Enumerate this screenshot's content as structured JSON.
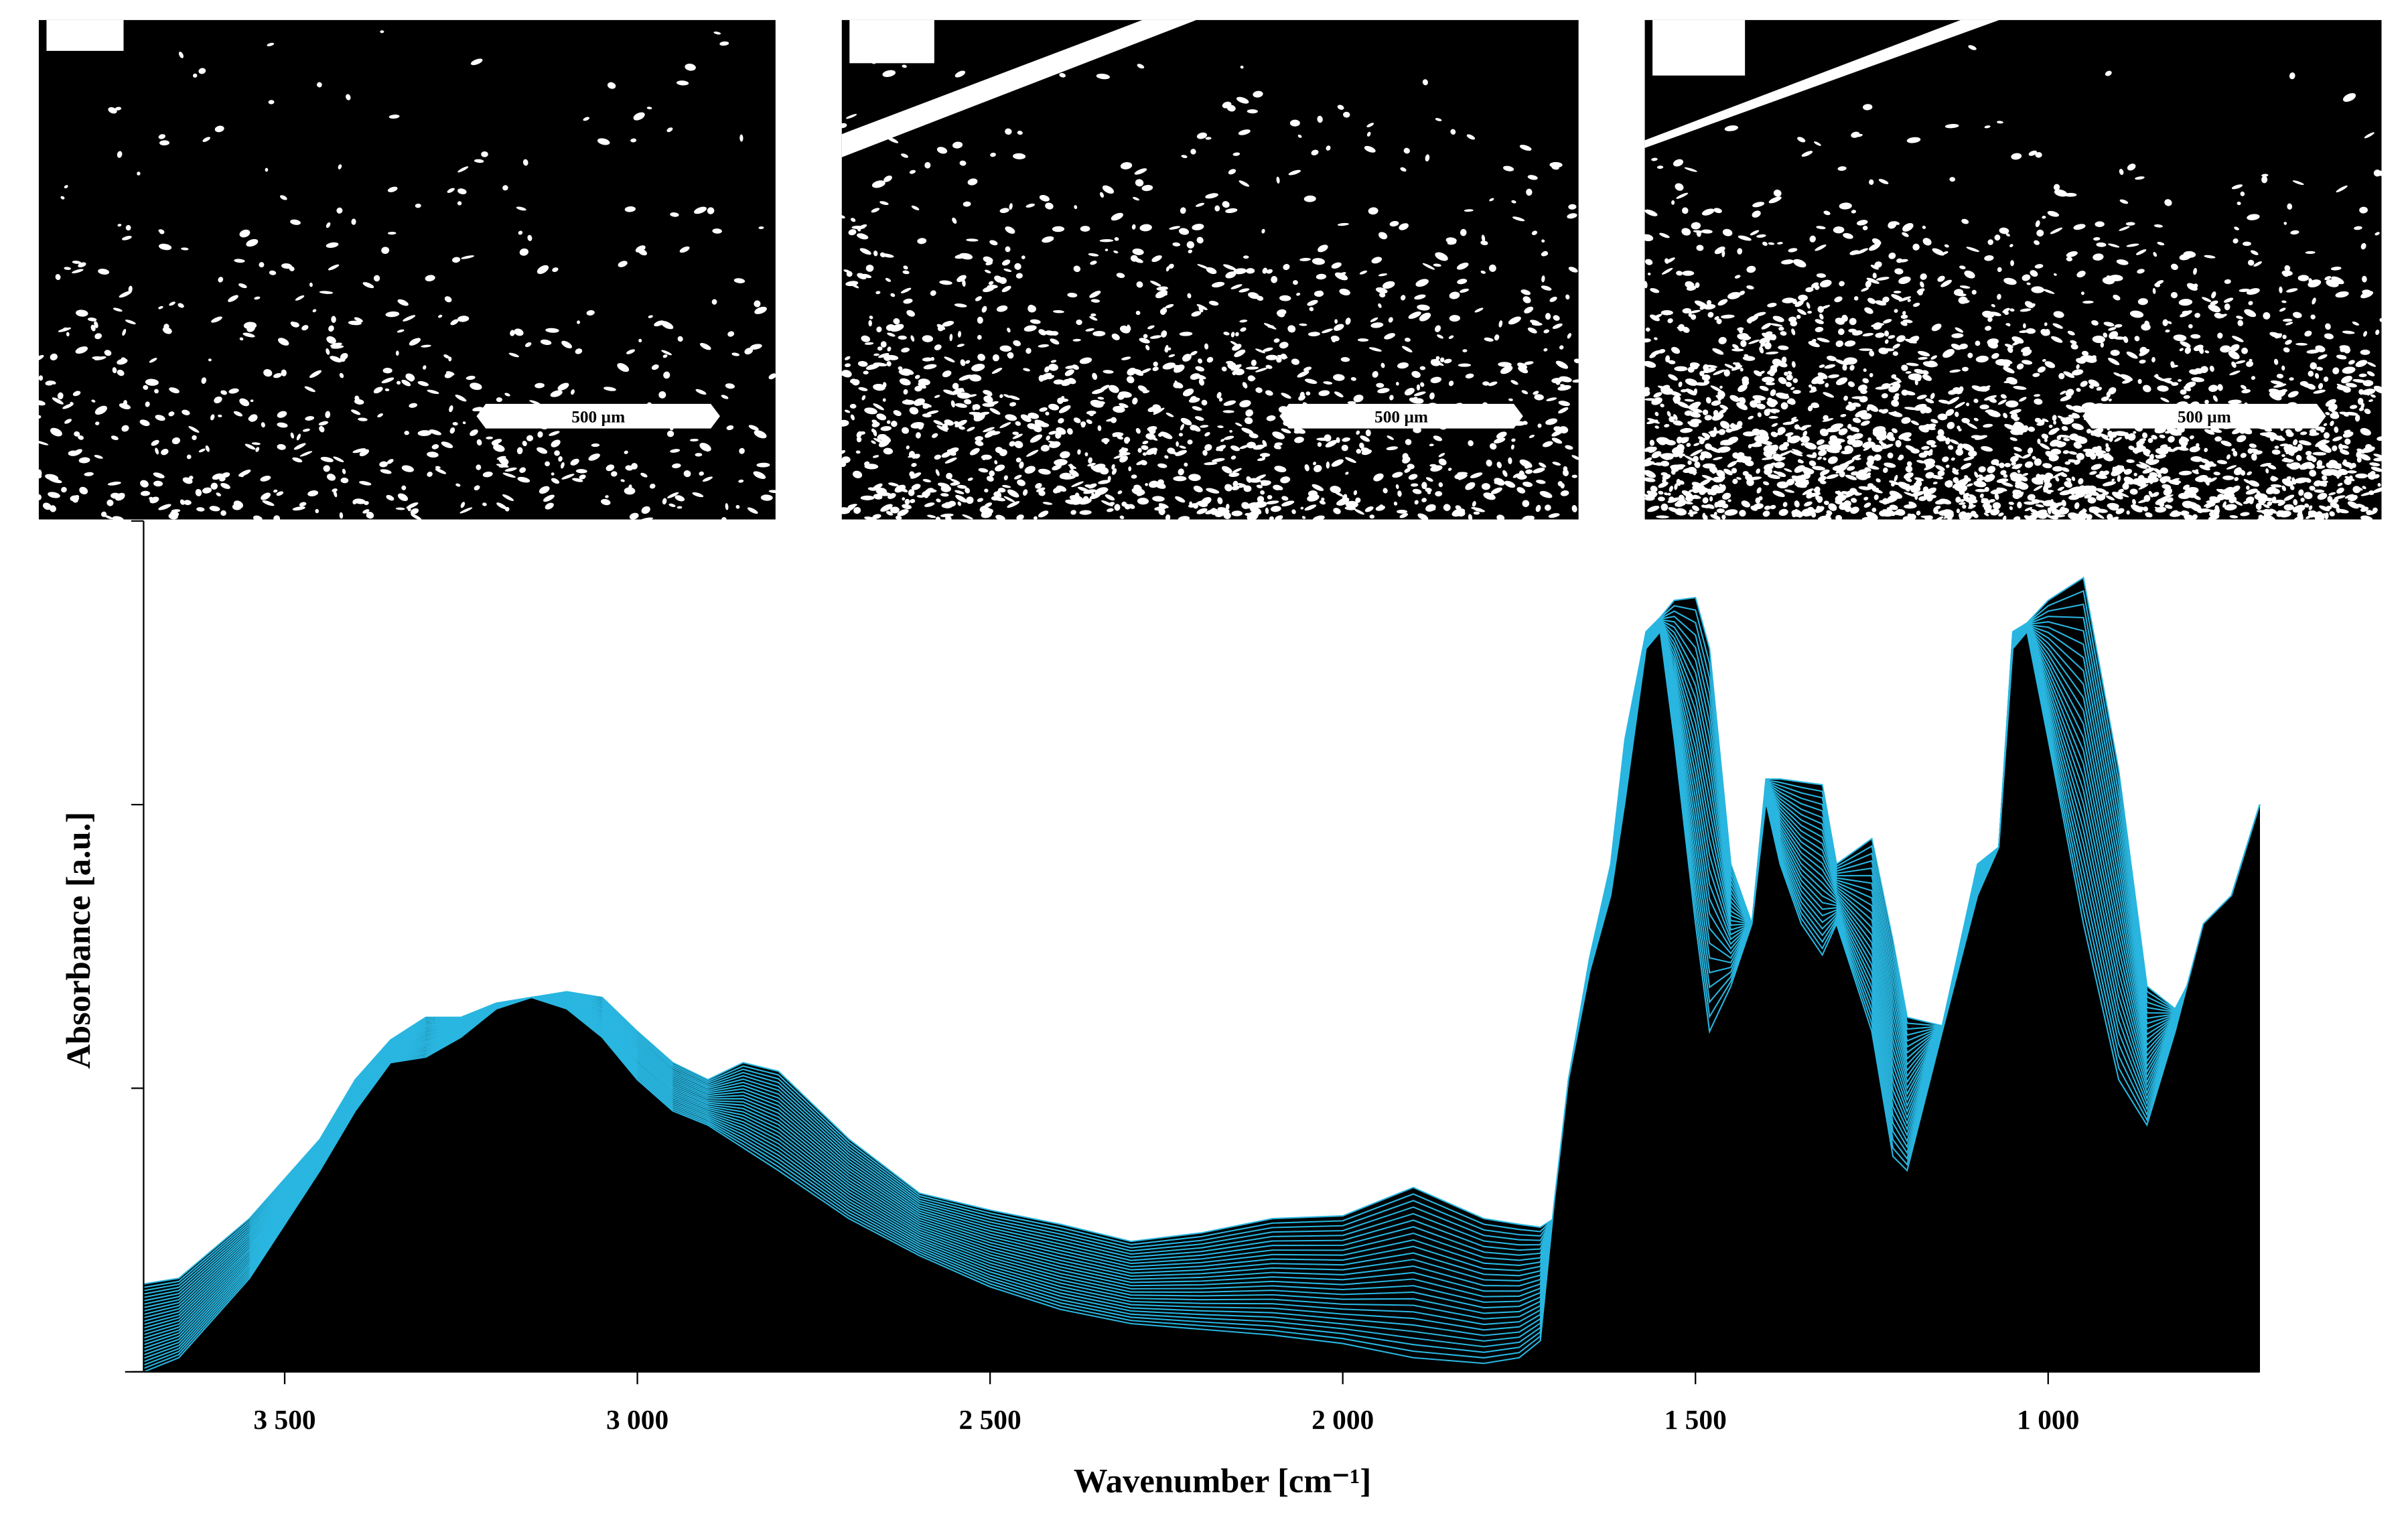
{
  "images": [
    {
      "scale_bar": "500 µm"
    },
    {
      "scale_bar": "500 µm"
    },
    {
      "scale_bar": "500 µm"
    }
  ],
  "chart_data": {
    "type": "waterfall",
    "xlabel": "Wavenumber [cm⁻¹]",
    "ylabel": "Absorbance [a.u.]",
    "xlim": [
      3700,
      700
    ],
    "ylim": [
      0,
      3
    ],
    "xticks": [
      {
        "value": 3500,
        "label": "3 500"
      },
      {
        "value": 3000,
        "label": "3 000"
      },
      {
        "value": 2500,
        "label": "2 500"
      },
      {
        "value": 2000,
        "label": "2 000"
      },
      {
        "value": 1500,
        "label": "1 500"
      },
      {
        "value": 1000,
        "label": "1 000"
      }
    ],
    "yticks": [
      0,
      1,
      2,
      3
    ],
    "x": [
      3700,
      3650,
      3550,
      3450,
      3400,
      3350,
      3300,
      3250,
      3200,
      3150,
      3100,
      3050,
      3000,
      2950,
      2900,
      2850,
      2800,
      2700,
      2600,
      2500,
      2400,
      2300,
      2200,
      2100,
      2000,
      1900,
      1800,
      1750,
      1720,
      1700,
      1680,
      1650,
      1620,
      1600,
      1570,
      1550,
      1530,
      1500,
      1480,
      1450,
      1420,
      1400,
      1380,
      1350,
      1320,
      1300,
      1250,
      1220,
      1200,
      1150,
      1100,
      1070,
      1050,
      1030,
      1000,
      950,
      900,
      860,
      820,
      780,
      740,
      700
    ],
    "series": [
      {
        "color": "#000000",
        "values": [
          0.0,
          0.05,
          0.33,
          0.71,
          0.92,
          1.09,
          1.11,
          1.18,
          1.28,
          1.32,
          1.28,
          1.18,
          1.03,
          0.92,
          0.87,
          0.79,
          0.71,
          0.54,
          0.41,
          0.3,
          0.22,
          0.17,
          0.15,
          0.13,
          0.1,
          0.05,
          0.03,
          0.05,
          0.11,
          0.6,
          1.03,
          1.41,
          1.68,
          2.01,
          2.55,
          2.61,
          2.23,
          1.58,
          1.2,
          1.36,
          1.58,
          2.01,
          1.79,
          1.58,
          1.47,
          1.58,
          1.2,
          0.76,
          0.71,
          1.2,
          1.68,
          1.85,
          2.55,
          2.61,
          2.23,
          1.58,
          1.03,
          0.87,
          1.2,
          1.58,
          1.68,
          2.0
        ]
      },
      {
        "color": "#29b6e0",
        "values": [
          0.31,
          0.33,
          0.54,
          0.82,
          1.03,
          1.17,
          1.25,
          1.25,
          1.3,
          1.32,
          1.34,
          1.32,
          1.2,
          1.09,
          1.03,
          1.09,
          1.06,
          0.82,
          0.63,
          0.57,
          0.52,
          0.46,
          0.49,
          0.54,
          0.55,
          0.65,
          0.54,
          0.52,
          0.51,
          0.54,
          1.03,
          1.46,
          1.79,
          2.23,
          2.61,
          2.66,
          2.72,
          2.73,
          2.55,
          1.79,
          1.58,
          2.09,
          2.09,
          2.08,
          2.07,
          1.79,
          1.88,
          1.52,
          1.25,
          1.22,
          1.79,
          1.85,
          2.61,
          2.64,
          2.72,
          2.8,
          2.12,
          1.36,
          1.28,
          1.47,
          1.68,
          2.0
        ]
      }
    ]
  }
}
